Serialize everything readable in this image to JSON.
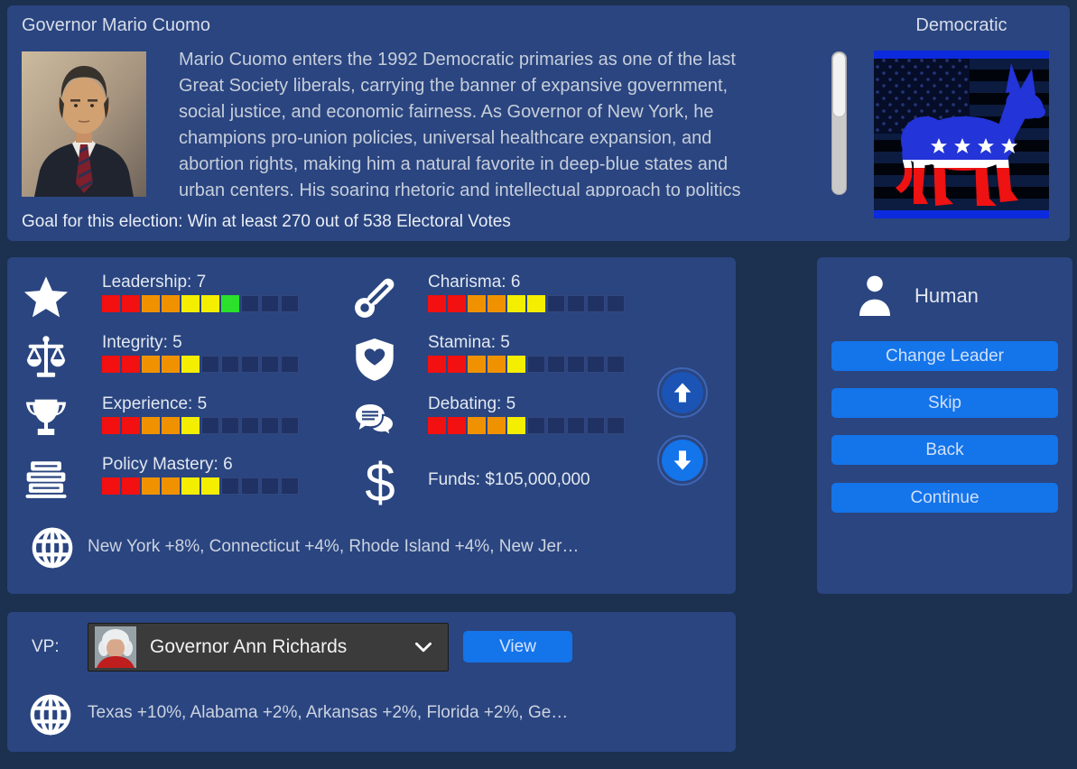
{
  "window": {
    "background": "#1c304f",
    "panel_color": "#2a4580",
    "accent_blue": "#1474ea"
  },
  "header": {
    "title": "Governor Mario Cuomo",
    "party": "Democratic",
    "portrait_icon": "mario-cuomo-portrait",
    "party_logo_icon": "democratic-donkey-logo",
    "bio_lines": [
      "Mario Cuomo enters the 1992 Democratic primaries as one of the last",
      "Great Society liberals, carrying the banner of expansive government,",
      "social justice, and economic fairness. As Governor of New York, he",
      "champions pro-union policies, universal healthcare expansion, and",
      "abortion rights, making him a natural favorite in deep-blue states and",
      "urban centers. His soaring rhetoric and intellectual approach to politics"
    ],
    "goal": "Goal for this election: Win at least 270 out of 538 Electoral Votes"
  },
  "stats": {
    "ramp": [
      "#f21010",
      "#f21010",
      "#f09200",
      "#f09200",
      "#f4ee00",
      "#f4ee00",
      "#2be12b",
      "#2be12b",
      "#2be12b",
      "#2be12b"
    ],
    "empty_color": "#203263",
    "left": [
      {
        "icon": "star-icon",
        "label": "Leadership: 7",
        "value": 7,
        "max": 10
      },
      {
        "icon": "scales-icon",
        "label": "Integrity: 5",
        "value": 5,
        "max": 10
      },
      {
        "icon": "trophy-icon",
        "label": "Experience: 5",
        "value": 5,
        "max": 10
      },
      {
        "icon": "books-icon",
        "label": "Policy Mastery: 6",
        "value": 6,
        "max": 10
      }
    ],
    "right": [
      {
        "icon": "thermometer-icon",
        "label": "Charisma: 6",
        "value": 6,
        "max": 10
      },
      {
        "icon": "shield-heart-icon",
        "label": "Stamina: 5",
        "value": 5,
        "max": 10
      },
      {
        "icon": "speech-bubbles-icon",
        "label": "Debating: 5",
        "value": 5,
        "max": 10
      }
    ],
    "funds": {
      "icon": "dollar-icon",
      "label": "Funds: $105,000,000"
    },
    "state_bonuses": {
      "icon": "globe-icon",
      "text": "New York +8%, Connecticut +4%, Rhode Island +4%, New Jer…"
    }
  },
  "control_panel": {
    "player_icon": "person-icon",
    "player_type": "Human",
    "buttons": [
      {
        "label": "Change Leader"
      },
      {
        "label": "Skip"
      },
      {
        "label": "Back"
      },
      {
        "label": "Continue"
      }
    ]
  },
  "vp_panel": {
    "label": "VP:",
    "selected_option": "Governor Ann Richards",
    "photo_icon": "ann-richards-photo",
    "view_button": "View",
    "state_bonuses": {
      "icon": "globe-icon",
      "text": "Texas +10%, Alabama +2%, Arkansas +2%, Florida +2%, Ge…"
    }
  }
}
